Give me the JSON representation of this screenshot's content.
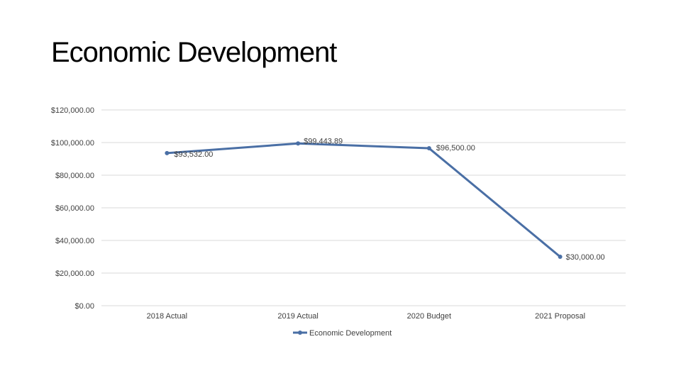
{
  "slide": {
    "title": "Economic Development"
  },
  "chart_data": {
    "type": "line",
    "title": "",
    "categories": [
      "2018 Actual",
      "2019 Actual",
      "2020 Budget",
      "2021 Proposal"
    ],
    "series": [
      {
        "name": "Economic Development",
        "values": [
          93532.0,
          99443.89,
          96500.0,
          30000.0
        ],
        "labels": [
          "$93,532.00",
          "$99,443.89",
          "$96,500.00",
          "$30,000.00"
        ],
        "color": "#4a6fa5"
      }
    ],
    "yticks": [
      "$0.00",
      "$20,000.00",
      "$40,000.00",
      "$60,000.00",
      "$80,000.00",
      "$100,000.00",
      "$120,000.00"
    ],
    "ylim": [
      0,
      120000
    ],
    "xlabel": "",
    "ylabel": "",
    "grid": true,
    "gridColor": "#d9d9d9",
    "legend": "bottom"
  }
}
